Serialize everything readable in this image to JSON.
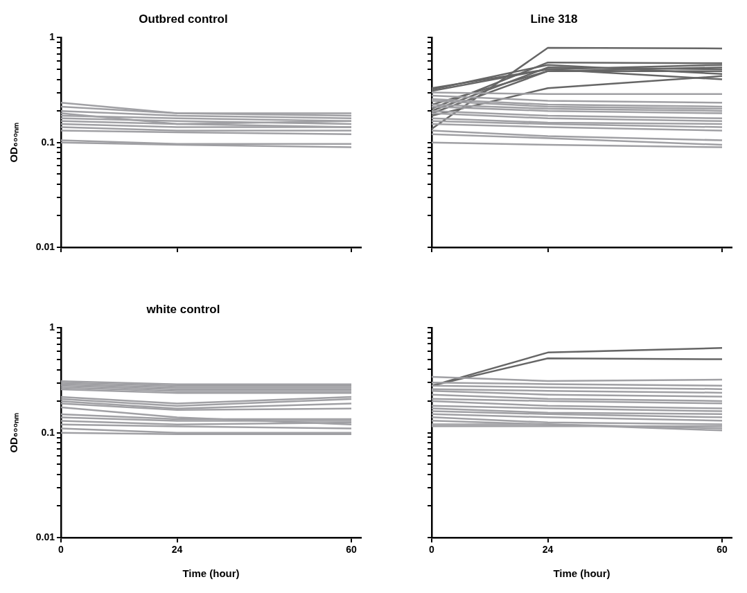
{
  "chart_data": [
    {
      "type": "line",
      "title": "Outbred control",
      "ylabel": "OD₆₀₀ₙₘ",
      "x": [
        0,
        24,
        60
      ],
      "xlim": [
        0,
        62
      ],
      "xticks": [
        0,
        24,
        60
      ],
      "ylim": [
        0.01,
        1
      ],
      "yticks": [
        0.01,
        {
          "value": 0.02,
          "label": null
        },
        {
          "value": 0.03,
          "label": null
        },
        {
          "value": 0.04,
          "label": null
        },
        {
          "value": 0.05,
          "label": null
        },
        {
          "value": 0.06,
          "label": null
        },
        {
          "value": 0.07,
          "label": null
        },
        {
          "value": 0.08,
          "label": null
        },
        {
          "value": 0.09,
          "label": null
        },
        0.1,
        {
          "value": 0.2,
          "label": null
        },
        {
          "value": 0.3,
          "label": null
        },
        {
          "value": 0.4,
          "label": null
        },
        {
          "value": 0.5,
          "label": null
        },
        {
          "value": 0.6,
          "label": null
        },
        {
          "value": 0.7,
          "label": null
        },
        {
          "value": 0.8,
          "label": null
        },
        {
          "value": 0.9,
          "label": null
        },
        1
      ],
      "log": "y",
      "grid": false,
      "legend": false,
      "marker": "none",
      "line_style": "solid",
      "tick_labels": "y",
      "series": [
        {
          "color": "#a0a0a4",
          "values": [
            0.24,
            0.19,
            0.19
          ]
        },
        {
          "color": "#a0a0a4",
          "values": [
            0.22,
            0.19,
            0.18
          ]
        },
        {
          "color": "#a0a0a4",
          "values": [
            0.2,
            0.18,
            0.17
          ]
        },
        {
          "color": "#a0a0a4",
          "values": [
            0.19,
            0.15,
            0.16
          ]
        },
        {
          "color": "#a0a0a4",
          "values": [
            0.18,
            0.17,
            0.16
          ]
        },
        {
          "color": "#a0a0a4",
          "values": [
            0.17,
            0.16,
            0.15
          ]
        },
        {
          "color": "#a0a0a4",
          "values": [
            0.16,
            0.15,
            0.14
          ]
        },
        {
          "color": "#a0a0a4",
          "values": [
            0.15,
            0.14,
            0.14
          ]
        },
        {
          "color": "#a0a0a4",
          "values": [
            0.14,
            0.13,
            0.13
          ]
        },
        {
          "color": "#a0a0a4",
          "values": [
            0.13,
            0.125,
            0.12
          ]
        },
        {
          "color": "#a0a0a4",
          "values": [
            0.105,
            0.097,
            0.097
          ]
        },
        {
          "color": "#a0a0a4",
          "values": [
            0.1,
            0.095,
            0.09
          ]
        }
      ]
    },
    {
      "type": "line",
      "title": "Line 318",
      "x": [
        0,
        24,
        60
      ],
      "xlim": [
        0,
        62
      ],
      "xticks": [
        0,
        24,
        60
      ],
      "ylim": [
        0.01,
        1
      ],
      "yticks": [
        0.01,
        {
          "value": 0.02,
          "label": null
        },
        {
          "value": 0.03,
          "label": null
        },
        {
          "value": 0.04,
          "label": null
        },
        {
          "value": 0.05,
          "label": null
        },
        {
          "value": 0.06,
          "label": null
        },
        {
          "value": 0.07,
          "label": null
        },
        {
          "value": 0.08,
          "label": null
        },
        {
          "value": 0.09,
          "label": null
        },
        0.1,
        {
          "value": 0.2,
          "label": null
        },
        {
          "value": 0.3,
          "label": null
        },
        {
          "value": 0.4,
          "label": null
        },
        {
          "value": 0.5,
          "label": null
        },
        {
          "value": 0.6,
          "label": null
        },
        {
          "value": 0.7,
          "label": null
        },
        {
          "value": 0.8,
          "label": null
        },
        {
          "value": 0.9,
          "label": null
        },
        1
      ],
      "log": "y",
      "grid": false,
      "legend": false,
      "marker": "none",
      "line_style": "solid",
      "tick_labels": false,
      "series": [
        {
          "color": "#a0a0a4",
          "values": [
            0.3,
            0.29,
            0.29
          ]
        },
        {
          "color": "#a0a0a4",
          "values": [
            0.28,
            0.25,
            0.24
          ]
        },
        {
          "color": "#a0a0a4",
          "values": [
            0.26,
            0.23,
            0.22
          ]
        },
        {
          "color": "#a0a0a4",
          "values": [
            0.25,
            0.22,
            0.21
          ]
        },
        {
          "color": "#a0a0a4",
          "values": [
            0.23,
            0.21,
            0.2
          ]
        },
        {
          "color": "#a0a0a4",
          "values": [
            0.22,
            0.2,
            0.19
          ]
        },
        {
          "color": "#a0a0a4",
          "values": [
            0.2,
            0.18,
            0.17
          ]
        },
        {
          "color": "#a0a0a4",
          "values": [
            0.19,
            0.17,
            0.16
          ]
        },
        {
          "color": "#a0a0a4",
          "values": [
            0.17,
            0.155,
            0.15
          ]
        },
        {
          "color": "#a0a0a4",
          "values": [
            0.16,
            0.15,
            0.14
          ]
        },
        {
          "color": "#a0a0a4",
          "values": [
            0.15,
            0.14,
            0.13
          ]
        },
        {
          "color": "#a0a0a4",
          "values": [
            0.13,
            0.115,
            0.105
          ]
        },
        {
          "color": "#a0a0a4",
          "values": [
            0.12,
            0.11,
            0.095
          ]
        },
        {
          "color": "#a0a0a4",
          "values": [
            0.1,
            0.095,
            0.09
          ]
        },
        {
          "color": "#666666",
          "values": [
            0.135,
            0.8,
            0.79
          ]
        },
        {
          "color": "#666666",
          "values": [
            0.33,
            0.5,
            0.4
          ]
        },
        {
          "color": "#666666",
          "values": [
            0.32,
            0.55,
            0.45
          ]
        },
        {
          "color": "#666666",
          "values": [
            0.31,
            0.5,
            0.55
          ]
        },
        {
          "color": "#666666",
          "values": [
            0.21,
            0.58,
            0.57
          ]
        },
        {
          "color": "#666666",
          "values": [
            0.2,
            0.52,
            0.5
          ]
        },
        {
          "color": "#666666",
          "values": [
            0.19,
            0.48,
            0.48
          ]
        },
        {
          "color": "#666666",
          "values": [
            0.18,
            0.33,
            0.43
          ]
        },
        {
          "color": "#666666",
          "values": [
            0.23,
            0.48,
            0.52
          ]
        }
      ]
    },
    {
      "type": "line",
      "title": "white control",
      "ylabel": "OD₆₀₀ₙₘ",
      "xlabel": "Time (hour)",
      "x": [
        0,
        24,
        60
      ],
      "xlim": [
        0,
        62
      ],
      "xticks": [
        0,
        24,
        60
      ],
      "ylim": [
        0.01,
        1
      ],
      "yticks": [
        0.01,
        {
          "value": 0.02,
          "label": null
        },
        {
          "value": 0.03,
          "label": null
        },
        {
          "value": 0.04,
          "label": null
        },
        {
          "value": 0.05,
          "label": null
        },
        {
          "value": 0.06,
          "label": null
        },
        {
          "value": 0.07,
          "label": null
        },
        {
          "value": 0.08,
          "label": null
        },
        {
          "value": 0.09,
          "label": null
        },
        0.1,
        {
          "value": 0.2,
          "label": null
        },
        {
          "value": 0.3,
          "label": null
        },
        {
          "value": 0.4,
          "label": null
        },
        {
          "value": 0.5,
          "label": null
        },
        {
          "value": 0.6,
          "label": null
        },
        {
          "value": 0.7,
          "label": null
        },
        {
          "value": 0.8,
          "label": null
        },
        {
          "value": 0.9,
          "label": null
        },
        1
      ],
      "log": "y",
      "grid": false,
      "legend": false,
      "marker": "none",
      "line_style": "solid",
      "series": [
        {
          "color": "#a0a0a4",
          "values": [
            0.31,
            0.29,
            0.29
          ]
        },
        {
          "color": "#a0a0a4",
          "values": [
            0.3,
            0.28,
            0.28
          ]
        },
        {
          "color": "#a0a0a4",
          "values": [
            0.29,
            0.27,
            0.27
          ]
        },
        {
          "color": "#a0a0a4",
          "values": [
            0.28,
            0.26,
            0.26
          ]
        },
        {
          "color": "#a0a0a4",
          "values": [
            0.27,
            0.25,
            0.25
          ]
        },
        {
          "color": "#a0a0a4",
          "values": [
            0.26,
            0.24,
            0.24
          ]
        },
        {
          "color": "#a0a0a4",
          "values": [
            0.22,
            0.19,
            0.22
          ]
        },
        {
          "color": "#a0a0a4",
          "values": [
            0.21,
            0.18,
            0.21
          ]
        },
        {
          "color": "#a0a0a4",
          "values": [
            0.2,
            0.17,
            0.19
          ]
        },
        {
          "color": "#a0a0a4",
          "values": [
            0.19,
            0.165,
            0.17
          ]
        },
        {
          "color": "#a0a0a4",
          "values": [
            0.175,
            0.14,
            0.12
          ]
        },
        {
          "color": "#a0a0a4",
          "values": [
            0.15,
            0.135,
            0.135
          ]
        },
        {
          "color": "#a0a0a4",
          "values": [
            0.14,
            0.13,
            0.13
          ]
        },
        {
          "color": "#a0a0a4",
          "values": [
            0.13,
            0.12,
            0.125
          ]
        },
        {
          "color": "#a0a0a4",
          "values": [
            0.12,
            0.115,
            0.11
          ]
        },
        {
          "color": "#a0a0a4",
          "values": [
            0.11,
            0.1,
            0.1
          ]
        },
        {
          "color": "#a0a0a4",
          "values": [
            0.1,
            0.097,
            0.097
          ]
        }
      ]
    },
    {
      "type": "line",
      "xlabel": "Time (hour)",
      "x": [
        0,
        24,
        60
      ],
      "xlim": [
        0,
        62
      ],
      "xticks": [
        0,
        24,
        60
      ],
      "ylim": [
        0.01,
        1
      ],
      "yticks": [
        0.01,
        {
          "value": 0.02,
          "label": null
        },
        {
          "value": 0.03,
          "label": null
        },
        {
          "value": 0.04,
          "label": null
        },
        {
          "value": 0.05,
          "label": null
        },
        {
          "value": 0.06,
          "label": null
        },
        {
          "value": 0.07,
          "label": null
        },
        {
          "value": 0.08,
          "label": null
        },
        {
          "value": 0.09,
          "label": null
        },
        0.1,
        {
          "value": 0.2,
          "label": null
        },
        {
          "value": 0.3,
          "label": null
        },
        {
          "value": 0.4,
          "label": null
        },
        {
          "value": 0.5,
          "label": null
        },
        {
          "value": 0.6,
          "label": null
        },
        {
          "value": 0.7,
          "label": null
        },
        {
          "value": 0.8,
          "label": null
        },
        {
          "value": 0.9,
          "label": null
        },
        1
      ],
      "log": "y",
      "grid": false,
      "legend": false,
      "marker": "none",
      "line_style": "solid",
      "tick_labels": "x",
      "series": [
        {
          "color": "#a0a0a4",
          "values": [
            0.34,
            0.31,
            0.32
          ]
        },
        {
          "color": "#a0a0a4",
          "values": [
            0.3,
            0.29,
            0.28
          ]
        },
        {
          "color": "#a0a0a4",
          "values": [
            0.28,
            0.27,
            0.26
          ]
        },
        {
          "color": "#a0a0a4",
          "values": [
            0.26,
            0.25,
            0.24
          ]
        },
        {
          "color": "#a0a0a4",
          "values": [
            0.25,
            0.23,
            0.22
          ]
        },
        {
          "color": "#a0a0a4",
          "values": [
            0.23,
            0.21,
            0.2
          ]
        },
        {
          "color": "#a0a0a4",
          "values": [
            0.21,
            0.2,
            0.19
          ]
        },
        {
          "color": "#a0a0a4",
          "values": [
            0.2,
            0.18,
            0.17
          ]
        },
        {
          "color": "#a0a0a4",
          "values": [
            0.18,
            0.17,
            0.16
          ]
        },
        {
          "color": "#a0a0a4",
          "values": [
            0.17,
            0.155,
            0.15
          ]
        },
        {
          "color": "#a0a0a4",
          "values": [
            0.16,
            0.15,
            0.14
          ]
        },
        {
          "color": "#a0a0a4",
          "values": [
            0.15,
            0.14,
            0.13
          ]
        },
        {
          "color": "#a0a0a4",
          "values": [
            0.14,
            0.125,
            0.12
          ]
        },
        {
          "color": "#a0a0a4",
          "values": [
            0.13,
            0.12,
            0.11
          ]
        },
        {
          "color": "#a0a0a4",
          "values": [
            0.12,
            0.12,
            0.105
          ]
        },
        {
          "color": "#a0a0a4",
          "values": [
            0.115,
            0.115,
            0.115
          ]
        },
        {
          "color": "#666666",
          "values": [
            0.28,
            0.58,
            0.64
          ]
        },
        {
          "color": "#666666",
          "values": [
            0.28,
            0.51,
            0.5
          ]
        }
      ]
    }
  ]
}
